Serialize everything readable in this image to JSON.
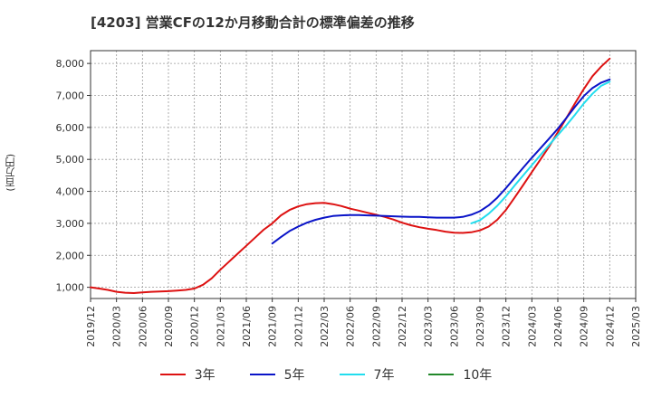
{
  "chart_data": {
    "type": "line",
    "title": "[4203]  営業CFの12か月移動合計の標準偏差の推移",
    "ylabel": "(百万円)",
    "xlabel": "",
    "ylim": [
      650,
      8400
    ],
    "yticks": [
      1000,
      2000,
      3000,
      4000,
      5000,
      6000,
      7000,
      8000
    ],
    "ytick_labels": [
      "1,000",
      "2,000",
      "3,000",
      "4,000",
      "5,000",
      "6,000",
      "7,000",
      "8,000"
    ],
    "xticks": [
      "2019/12",
      "2020/03",
      "2020/06",
      "2020/09",
      "2020/12",
      "2021/03",
      "2021/06",
      "2021/09",
      "2021/12",
      "2022/03",
      "2022/06",
      "2022/09",
      "2022/12",
      "2023/03",
      "2023/06",
      "2023/09",
      "2023/12",
      "2024/03",
      "2024/06",
      "2024/09",
      "2024/12",
      "2025/03"
    ],
    "grid": true,
    "legend_position": "bottom",
    "series": [
      {
        "name": "3年",
        "color": "#dd1111",
        "points": [
          [
            "2019/12",
            1000
          ],
          [
            "2020/01",
            960
          ],
          [
            "2020/02",
            920
          ],
          [
            "2020/03",
            860
          ],
          [
            "2020/04",
            830
          ],
          [
            "2020/05",
            820
          ],
          [
            "2020/06",
            840
          ],
          [
            "2020/07",
            860
          ],
          [
            "2020/08",
            870
          ],
          [
            "2020/09",
            880
          ],
          [
            "2020/10",
            900
          ],
          [
            "2020/11",
            920
          ],
          [
            "2020/12",
            960
          ],
          [
            "2021/01",
            1080
          ],
          [
            "2021/02",
            1280
          ],
          [
            "2021/03",
            1550
          ],
          [
            "2021/04",
            1800
          ],
          [
            "2021/05",
            2050
          ],
          [
            "2021/06",
            2300
          ],
          [
            "2021/07",
            2550
          ],
          [
            "2021/08",
            2800
          ],
          [
            "2021/09",
            3000
          ],
          [
            "2021/10",
            3250
          ],
          [
            "2021/11",
            3420
          ],
          [
            "2021/12",
            3530
          ],
          [
            "2022/01",
            3600
          ],
          [
            "2022/02",
            3630
          ],
          [
            "2022/03",
            3640
          ],
          [
            "2022/04",
            3600
          ],
          [
            "2022/05",
            3540
          ],
          [
            "2022/06",
            3460
          ],
          [
            "2022/07",
            3400
          ],
          [
            "2022/08",
            3330
          ],
          [
            "2022/09",
            3270
          ],
          [
            "2022/10",
            3200
          ],
          [
            "2022/11",
            3120
          ],
          [
            "2022/12",
            3020
          ],
          [
            "2023/01",
            2940
          ],
          [
            "2023/02",
            2880
          ],
          [
            "2023/03",
            2830
          ],
          [
            "2023/04",
            2790
          ],
          [
            "2023/05",
            2740
          ],
          [
            "2023/06",
            2710
          ],
          [
            "2023/07",
            2700
          ],
          [
            "2023/08",
            2720
          ],
          [
            "2023/09",
            2780
          ],
          [
            "2023/10",
            2900
          ],
          [
            "2023/11",
            3110
          ],
          [
            "2023/12",
            3420
          ],
          [
            "2024/01",
            3800
          ],
          [
            "2024/02",
            4200
          ],
          [
            "2024/03",
            4600
          ],
          [
            "2024/04",
            5000
          ],
          [
            "2024/05",
            5400
          ],
          [
            "2024/06",
            5850
          ],
          [
            "2024/07",
            6300
          ],
          [
            "2024/08",
            6760
          ],
          [
            "2024/09",
            7200
          ],
          [
            "2024/10",
            7600
          ],
          [
            "2024/11",
            7900
          ],
          [
            "2024/12",
            8150
          ]
        ]
      },
      {
        "name": "5年",
        "color": "#0a14c8",
        "points": [
          [
            "2021/09",
            2370
          ],
          [
            "2021/10",
            2570
          ],
          [
            "2021/11",
            2760
          ],
          [
            "2021/12",
            2900
          ],
          [
            "2022/01",
            3020
          ],
          [
            "2022/02",
            3110
          ],
          [
            "2022/03",
            3180
          ],
          [
            "2022/04",
            3230
          ],
          [
            "2022/05",
            3250
          ],
          [
            "2022/06",
            3260
          ],
          [
            "2022/07",
            3260
          ],
          [
            "2022/08",
            3250
          ],
          [
            "2022/09",
            3240
          ],
          [
            "2022/10",
            3230
          ],
          [
            "2022/11",
            3220
          ],
          [
            "2022/12",
            3210
          ],
          [
            "2023/01",
            3200
          ],
          [
            "2023/02",
            3200
          ],
          [
            "2023/03",
            3190
          ],
          [
            "2023/04",
            3180
          ],
          [
            "2023/05",
            3180
          ],
          [
            "2023/06",
            3180
          ],
          [
            "2023/07",
            3200
          ],
          [
            "2023/08",
            3270
          ],
          [
            "2023/09",
            3380
          ],
          [
            "2023/10",
            3560
          ],
          [
            "2023/11",
            3800
          ],
          [
            "2023/12",
            4100
          ],
          [
            "2024/01",
            4420
          ],
          [
            "2024/02",
            4740
          ],
          [
            "2024/03",
            5050
          ],
          [
            "2024/04",
            5350
          ],
          [
            "2024/05",
            5650
          ],
          [
            "2024/06",
            5960
          ],
          [
            "2024/07",
            6300
          ],
          [
            "2024/08",
            6650
          ],
          [
            "2024/09",
            6980
          ],
          [
            "2024/10",
            7230
          ],
          [
            "2024/11",
            7400
          ],
          [
            "2024/12",
            7500
          ]
        ]
      },
      {
        "name": "7年",
        "color": "#22ddee",
        "points": [
          [
            "2023/08",
            3000
          ],
          [
            "2023/09",
            3100
          ],
          [
            "2023/10",
            3300
          ],
          [
            "2023/11",
            3550
          ],
          [
            "2023/12",
            3850
          ],
          [
            "2024/01",
            4180
          ],
          [
            "2024/02",
            4500
          ],
          [
            "2024/03",
            4820
          ],
          [
            "2024/04",
            5140
          ],
          [
            "2024/05",
            5450
          ],
          [
            "2024/06",
            5760
          ],
          [
            "2024/07",
            6070
          ],
          [
            "2024/08",
            6400
          ],
          [
            "2024/09",
            6750
          ],
          [
            "2024/10",
            7050
          ],
          [
            "2024/11",
            7300
          ],
          [
            "2024/12",
            7430
          ]
        ]
      },
      {
        "name": "10年",
        "color": "#22882a",
        "points": []
      }
    ]
  }
}
